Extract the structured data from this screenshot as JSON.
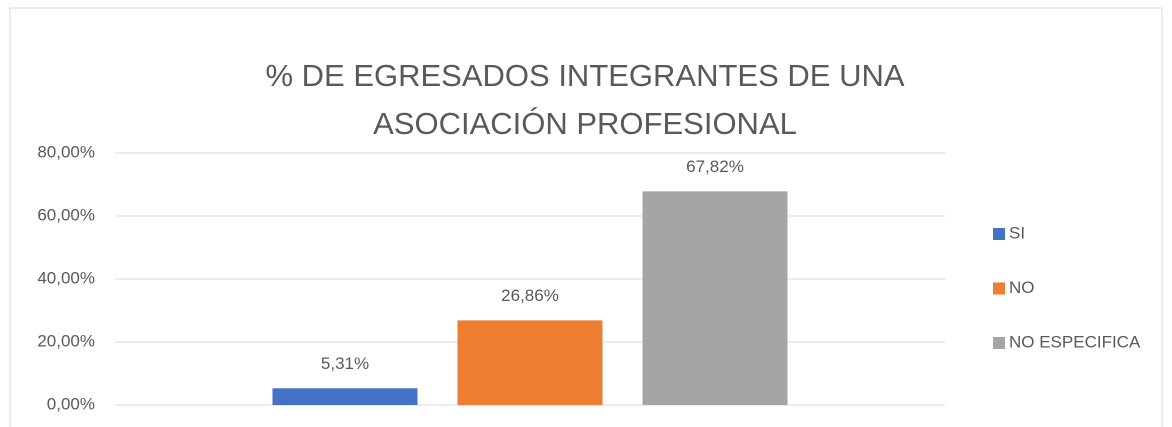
{
  "chart_data": {
    "type": "bar",
    "title": "% DE EGRESADOS INTEGRANTES DE UNA ASOCIACIÓN PROFESIONAL",
    "categories": [
      null
    ],
    "series": [
      {
        "name": "SI",
        "color": "#4472c4",
        "values": [
          5.31
        ],
        "value_labels": [
          "5,31%"
        ]
      },
      {
        "name": "NO",
        "color": "#ed7d31",
        "values": [
          26.86
        ],
        "value_labels": [
          "26,86%"
        ]
      },
      {
        "name": "NO ESPECIFICA",
        "color": "#a5a5a5",
        "values": [
          67.82
        ],
        "value_labels": [
          "67,82%"
        ]
      }
    ],
    "ylim": [
      0,
      80
    ],
    "yticks": [
      {
        "value": 0,
        "label": "0,00%"
      },
      {
        "value": 20,
        "label": "20,00%"
      },
      {
        "value": 40,
        "label": "40,00%"
      },
      {
        "value": 60,
        "label": "60,00%"
      },
      {
        "value": 80,
        "label": "80,00%"
      }
    ],
    "grid": true,
    "legend": "right"
  }
}
